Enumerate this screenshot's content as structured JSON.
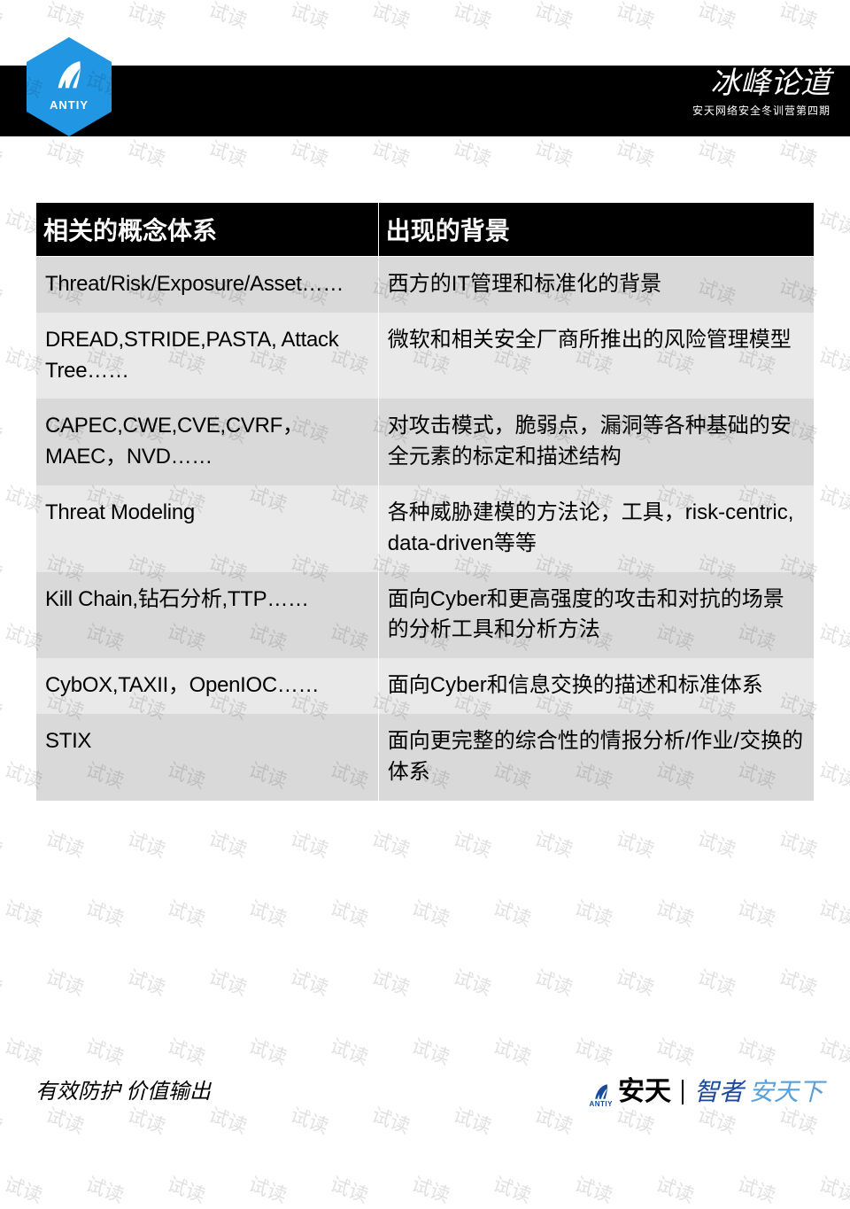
{
  "watermark": {
    "text": "试读",
    "color": "#000000",
    "opacity": 0.12,
    "angle_deg": 20,
    "fontsize": 22
  },
  "header": {
    "bar_color": "#000000",
    "badge": {
      "bg": "#2196e3",
      "brand": "ANTIY",
      "icon": "feather"
    },
    "calligraphy": {
      "title": "冰峰论道",
      "subtitle": "安天网络安全冬训营第四期",
      "color": "#ffffff"
    }
  },
  "table": {
    "type": "table",
    "header_bg": "#000000",
    "header_fg": "#ffffff",
    "header_fontsize": 28,
    "cell_fontsize": 24,
    "row_shade_a": "#d9d9d9",
    "row_shade_b": "#e9e9e9",
    "col_widths_pct": [
      44,
      56
    ],
    "columns": [
      "相关的概念体系",
      "出现的背景"
    ],
    "rows": [
      [
        "Threat/Risk/Exposure/Asset……",
        "西方的IT管理和标准化的背景"
      ],
      [
        "DREAD,STRIDE,PASTA, Attack Tree……",
        "微软和相关安全厂商所推出的风险管理模型"
      ],
      [
        "CAPEC,CWE,CVE,CVRF，MAEC，NVD……",
        "对攻击模式，脆弱点，漏洞等各种基础的安全元素的标定和描述结构"
      ],
      [
        "Threat Modeling",
        "各种威胁建模的方法论，工具，risk-centric, data-driven等等"
      ],
      [
        "Kill Chain,钻石分析,TTP……",
        "面向Cyber和更高强度的攻击和对抗的场景的分析工具和分析方法"
      ],
      [
        "CybOX,TAXII，OpenIOC……",
        "面向Cyber和信息交换的描述和标准体系"
      ],
      [
        "STIX",
        "面向更完整的综合性的情报分析/作业/交换的体系"
      ]
    ]
  },
  "footer": {
    "left": "有效防护 价值输出",
    "right": {
      "brand_cn": "安天",
      "mini_brand": "ANTIY",
      "slogan_a": "智者",
      "slogan_b": "安天下",
      "color_a": "#1a4aa0",
      "color_b": "#5aa0d8"
    }
  }
}
